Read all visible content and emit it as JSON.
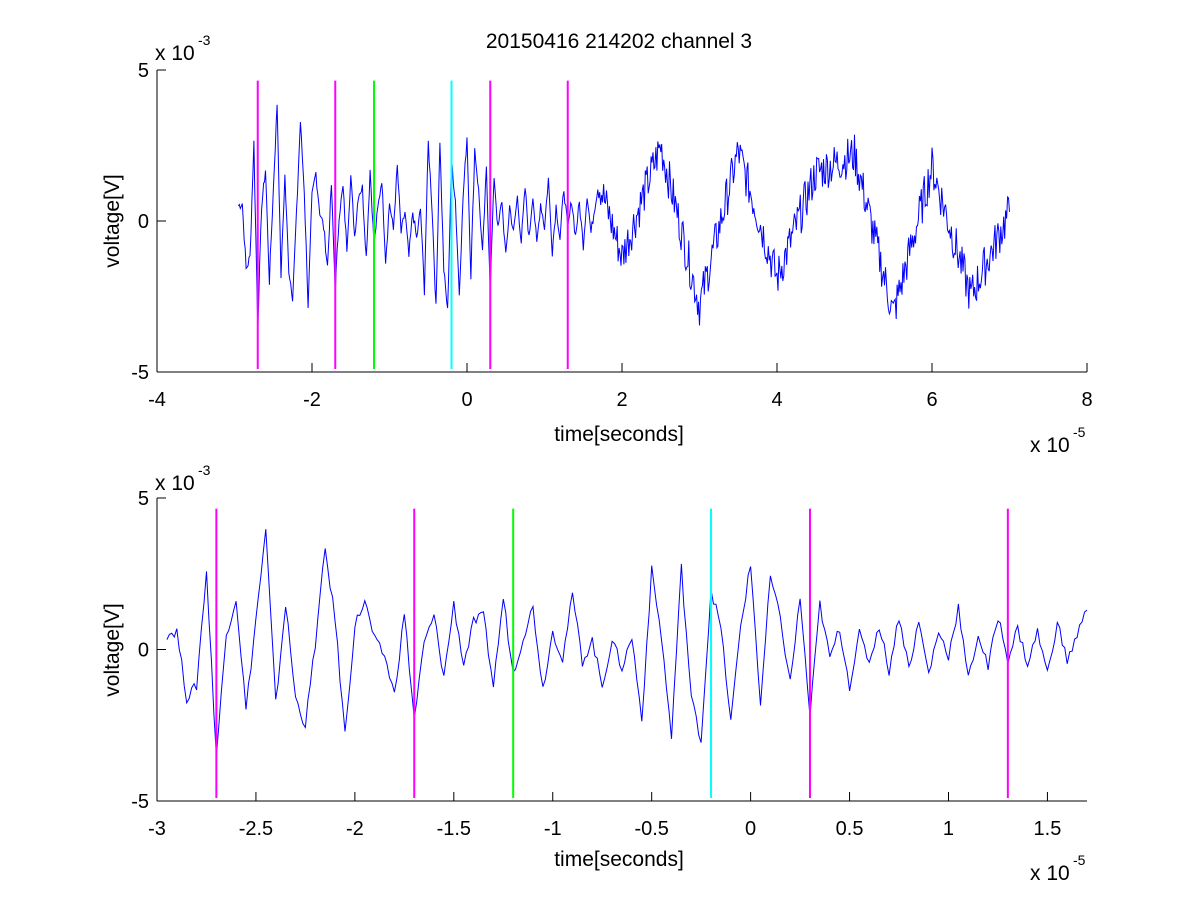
{
  "figure": {
    "title": "20150416 214202 channel 3"
  },
  "colors": {
    "signal": "#0000ff",
    "magenta": "#ff00ff",
    "green": "#00ff00",
    "cyan": "#00ffff",
    "axis": "#000000"
  },
  "chart_data": [
    {
      "type": "line",
      "title": "20150416 214202 channel 3",
      "xlabel": "time[seconds]",
      "ylabel": "voltage[V]",
      "x_exponent_base": "x 10",
      "x_exponent_power": "-5",
      "y_exponent_base": "x 10",
      "y_exponent_power": "-3",
      "xlim": [
        -4,
        8
      ],
      "ylim": [
        -5,
        5
      ],
      "x_ticks": [
        -4,
        -2,
        0,
        2,
        4,
        6,
        8
      ],
      "x_tick_labels": [
        "-4",
        "-2",
        "0",
        "2",
        "4",
        "6",
        "8"
      ],
      "y_ticks": [
        -5,
        0,
        5
      ],
      "y_tick_labels": [
        "-5",
        "0",
        "5"
      ],
      "grid": false,
      "series": [
        {
          "color": "#0000ff",
          "x": [
            -2.95,
            -2.9,
            -2.85,
            -2.8,
            -2.75,
            -2.7,
            -2.65,
            -2.6,
            -2.55,
            -2.5,
            -2.45,
            -2.4,
            -2.35,
            -2.3,
            -2.25,
            -2.2,
            -2.15,
            -2.1,
            -2.05,
            -2.0,
            -1.95,
            -1.9,
            -1.85,
            -1.8,
            -1.75,
            -1.7,
            -1.65,
            -1.6,
            -1.55,
            -1.5,
            -1.45,
            -1.4,
            -1.35,
            -1.3,
            -1.25,
            -1.2,
            -1.15,
            -1.1,
            -1.05,
            -1.0,
            -0.95,
            -0.9,
            -0.85,
            -0.8,
            -0.75,
            -0.7,
            -0.65,
            -0.6,
            -0.55,
            -0.5,
            -0.45,
            -0.4,
            -0.35,
            -0.3,
            -0.25,
            -0.2,
            -0.15,
            -0.1,
            -0.05,
            0.0,
            0.05,
            0.1,
            0.15,
            0.2,
            0.25,
            0.3,
            0.35,
            0.4,
            0.45,
            0.5,
            0.55,
            0.6,
            0.65,
            0.7,
            0.75,
            0.8,
            0.85,
            0.9,
            0.95,
            1.0,
            1.05,
            1.1,
            1.15,
            1.2,
            1.25,
            1.3,
            1.35,
            1.4,
            1.45,
            1.5,
            1.55,
            1.6,
            1.65,
            1.7,
            2.0,
            2.5,
            3.0,
            3.5,
            4.0,
            4.5,
            5.0,
            5.5,
            6.0,
            6.5,
            7.0
          ],
          "y": [
            0.5,
            0.6,
            -1.6,
            -1.2,
            2.6,
            -3.5,
            0.5,
            1.7,
            -2.0,
            1.0,
            3.9,
            -1.8,
            1.5,
            -1.6,
            -2.5,
            0.2,
            3.3,
            1.0,
            -2.8,
            0.8,
            1.6,
            0.3,
            -0.2,
            -1.5,
            1.2,
            -2.3,
            0.2,
            1.1,
            -0.9,
            1.5,
            -0.5,
            0.9,
            1.1,
            -1.2,
            1.7,
            -0.8,
            0.4,
            1.4,
            -1.3,
            0.6,
            -0.3,
            1.8,
            -0.4,
            0.3,
            -1.2,
            0.3,
            -0.6,
            0.4,
            -2.3,
            2.6,
            0.4,
            -2.9,
            2.7,
            -1.6,
            -3.0,
            2.0,
            0.7,
            -2.4,
            0.8,
            2.8,
            -1.8,
            2.4,
            1.0,
            -1.1,
            1.7,
            -2.2,
            1.5,
            -0.3,
            0.7,
            -1.2,
            0.5,
            -0.4,
            0.8,
            -0.7,
            1.1,
            -0.6,
            0.9,
            -0.8,
            0.6,
            -0.2,
            1.4,
            -1.0,
            0.5,
            -0.6,
            1.1,
            -0.3,
            0.7,
            -0.5,
            0.6,
            -0.8,
            0.9,
            -0.4,
            0.5,
            1.3,
            -1.2,
            2.5,
            -2.8,
            2.3,
            -1.9,
            1.6,
            2.2,
            -3.1,
            1.8,
            -2.5,
            0.3
          ],
          "dense_extension": true
        }
      ],
      "markers": [
        {
          "x": -2.7,
          "color": "#ff00ff"
        },
        {
          "x": -1.7,
          "color": "#ff00ff"
        },
        {
          "x": -1.2,
          "color": "#00ff00"
        },
        {
          "x": -0.2,
          "color": "#00ffff"
        },
        {
          "x": 0.3,
          "color": "#ff00ff"
        },
        {
          "x": 1.3,
          "color": "#ff00ff"
        }
      ]
    },
    {
      "type": "line",
      "title": "",
      "xlabel": "time[seconds]",
      "ylabel": "voltage[V]",
      "x_exponent_base": "x 10",
      "x_exponent_power": "-5",
      "y_exponent_base": "x 10",
      "y_exponent_power": "-3",
      "xlim": [
        -3,
        1.7
      ],
      "ylim": [
        -5,
        5
      ],
      "x_ticks": [
        -3,
        -2.5,
        -2,
        -1.5,
        -1,
        -0.5,
        0,
        0.5,
        1,
        1.5
      ],
      "x_tick_labels": [
        "-3",
        "-2.5",
        "-2",
        "-1.5",
        "-1",
        "-0.5",
        "0",
        "0.5",
        "1",
        "1.5"
      ],
      "y_ticks": [
        -5,
        0,
        5
      ],
      "y_tick_labels": [
        "-5",
        "0",
        "5"
      ],
      "grid": false,
      "series": [
        {
          "color": "#0000ff",
          "x": [
            -2.95,
            -2.9,
            -2.85,
            -2.8,
            -2.75,
            -2.7,
            -2.65,
            -2.6,
            -2.55,
            -2.5,
            -2.45,
            -2.4,
            -2.35,
            -2.3,
            -2.25,
            -2.2,
            -2.15,
            -2.1,
            -2.05,
            -2.0,
            -1.95,
            -1.9,
            -1.85,
            -1.8,
            -1.75,
            -1.7,
            -1.65,
            -1.6,
            -1.55,
            -1.5,
            -1.45,
            -1.4,
            -1.35,
            -1.3,
            -1.25,
            -1.2,
            -1.15,
            -1.1,
            -1.05,
            -1.0,
            -0.95,
            -0.9,
            -0.85,
            -0.8,
            -0.75,
            -0.7,
            -0.65,
            -0.6,
            -0.55,
            -0.5,
            -0.45,
            -0.4,
            -0.35,
            -0.3,
            -0.25,
            -0.2,
            -0.15,
            -0.1,
            -0.05,
            0.0,
            0.05,
            0.1,
            0.15,
            0.2,
            0.25,
            0.3,
            0.35,
            0.4,
            0.45,
            0.5,
            0.55,
            0.6,
            0.65,
            0.7,
            0.75,
            0.8,
            0.85,
            0.9,
            0.95,
            1.0,
            1.05,
            1.1,
            1.15,
            1.2,
            1.25,
            1.3,
            1.35,
            1.4,
            1.45,
            1.5,
            1.55,
            1.6,
            1.65,
            1.7
          ],
          "y": [
            0.5,
            0.6,
            -1.6,
            -1.2,
            2.6,
            -3.5,
            0.5,
            1.7,
            -2.0,
            1.0,
            3.9,
            -1.8,
            1.5,
            -1.6,
            -2.5,
            0.2,
            3.3,
            1.0,
            -2.8,
            0.8,
            1.6,
            0.3,
            -0.2,
            -1.5,
            1.2,
            -2.3,
            0.2,
            1.1,
            -0.9,
            1.5,
            -0.5,
            0.9,
            1.1,
            -1.2,
            1.7,
            -0.8,
            0.4,
            1.4,
            -1.3,
            0.6,
            -0.3,
            1.8,
            -0.4,
            0.3,
            -1.2,
            0.3,
            -0.6,
            0.4,
            -2.3,
            2.6,
            0.4,
            -2.9,
            2.7,
            -1.6,
            -3.0,
            2.0,
            0.7,
            -2.4,
            0.8,
            2.8,
            -1.8,
            2.4,
            1.0,
            -1.1,
            1.7,
            -2.2,
            1.5,
            -0.3,
            0.7,
            -1.2,
            0.5,
            -0.4,
            0.8,
            -0.7,
            1.1,
            -0.6,
            0.9,
            -0.8,
            0.6,
            -0.2,
            1.4,
            -1.0,
            0.5,
            -0.6,
            1.1,
            -0.3,
            0.7,
            -0.5,
            0.6,
            -0.8,
            0.9,
            -0.4,
            0.5,
            1.3
          ]
        }
      ],
      "markers": [
        {
          "x": -2.7,
          "color": "#ff00ff"
        },
        {
          "x": -1.7,
          "color": "#ff00ff"
        },
        {
          "x": -1.2,
          "color": "#00ff00"
        },
        {
          "x": -0.2,
          "color": "#00ffff"
        },
        {
          "x": 0.3,
          "color": "#ff00ff"
        },
        {
          "x": 1.3,
          "color": "#ff00ff"
        }
      ]
    }
  ]
}
